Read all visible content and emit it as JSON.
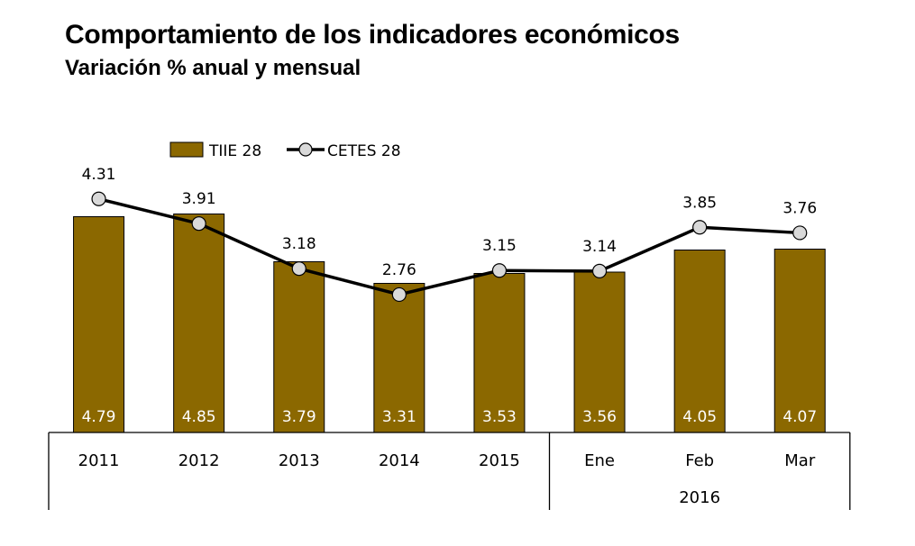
{
  "title": "Comportamiento de los indicadores económicos",
  "subtitle": "Variación % anual y mensual",
  "colors": {
    "bar": "#8B6800",
    "line": "#000000",
    "marker_fill": "#D9D9D9",
    "bar_label": "#FFFFFF"
  },
  "chart_data": {
    "type": "bar",
    "categories": [
      "2011",
      "2012",
      "2013",
      "2014",
      "2015",
      "Ene",
      "Feb",
      "Mar"
    ],
    "groups": [
      {
        "label": "",
        "categories": [
          "2011",
          "2012",
          "2013",
          "2014",
          "2015"
        ]
      },
      {
        "label": "2016",
        "categories": [
          "Ene",
          "Feb",
          "Mar"
        ]
      }
    ],
    "series": [
      {
        "name": "TIIE 28",
        "type": "bar",
        "values": [
          4.79,
          4.85,
          3.79,
          3.31,
          3.53,
          3.56,
          4.05,
          4.07
        ]
      },
      {
        "name": "CETES 28",
        "type": "line",
        "marker": "circle",
        "values": [
          4.31,
          3.91,
          3.18,
          2.76,
          3.15,
          3.14,
          3.85,
          3.76
        ]
      }
    ],
    "legend_position": "top-left",
    "grid": false
  }
}
